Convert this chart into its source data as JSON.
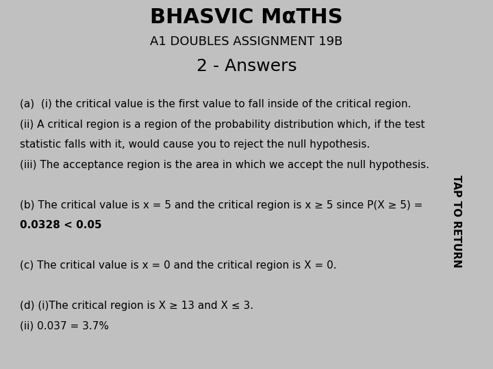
{
  "header_bg": "#F5A800",
  "header_title": "BHASVIC MαTHS",
  "header_subtitle": "A1 DOUBLES ASSIGNMENT 19B",
  "section_bg": "#C0C0C0",
  "section_title": "2 - Answers",
  "content_bg": "#FFFFFF",
  "sidebar_bg": "#F5A800",
  "sidebar_text": "TAP TO RETURN",
  "lines": [
    "(a)  (i) the critical value is the first value to fall inside of the critical region.",
    "(ii) A critical region is a region of the probability distribution which, if the test",
    "statistic falls with it, would cause you to reject the null hypothesis.",
    "(iii) The acceptance region is the area in which we accept the null hypothesis.",
    "",
    "(b) The critical value is x = 5 and the critical region is x ≥ 5 since P(X ≥ 5) =",
    "0.0328 < 0.05",
    "",
    "(c) The critical value is x = 0 and the critical region is X = 0.",
    "",
    "(d) (i)The critical region is X ≥ 13 and X ≤ 3.",
    "(ii) 0.037 = 3.7%"
  ],
  "header_title_fontsize": 22,
  "header_subtitle_fontsize": 13,
  "section_title_fontsize": 18,
  "content_fontsize": 11,
  "sidebar_fontsize": 11
}
